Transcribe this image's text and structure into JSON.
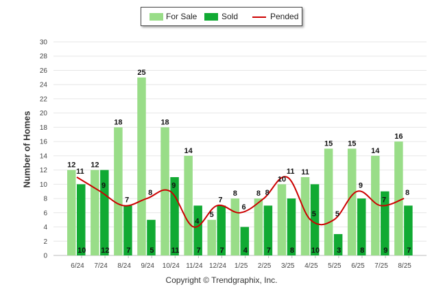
{
  "chart_data": {
    "type": "bar",
    "categories": [
      "6/24",
      "7/24",
      "8/24",
      "9/24",
      "10/24",
      "11/24",
      "12/24",
      "1/25",
      "2/25",
      "3/25",
      "4/25",
      "5/25",
      "6/25",
      "7/25",
      "8/25"
    ],
    "series": [
      {
        "name": "For Sale",
        "type": "bar",
        "color": "#99dd88",
        "values": [
          12,
          12,
          18,
          25,
          18,
          14,
          5,
          8,
          8,
          10,
          11,
          15,
          15,
          14,
          16
        ]
      },
      {
        "name": "Sold",
        "type": "bar",
        "color": "#11aa33",
        "values": [
          10,
          12,
          7,
          5,
          11,
          7,
          7,
          4,
          7,
          8,
          10,
          3,
          8,
          9,
          7
        ]
      },
      {
        "name": "Pended",
        "type": "line",
        "color": "#cc0000",
        "values": [
          11,
          9,
          7,
          8,
          9,
          4,
          7,
          6,
          8,
          11,
          5,
          5,
          9,
          7,
          8
        ]
      }
    ],
    "ylabel": "Number of Homes",
    "ylim": [
      0,
      30
    ],
    "yticks": [
      "0",
      "2",
      "4",
      "6",
      "8",
      "10",
      "12",
      "14",
      "16",
      "18",
      "20",
      "22",
      "24",
      "26",
      "28",
      "30"
    ],
    "grid": true,
    "legend_position": "top-center"
  },
  "legend": {
    "for_sale": "For Sale",
    "sold": "Sold",
    "pended": "Pended"
  },
  "footer": {
    "copyright": "Copyright © Trendgraphix, Inc."
  }
}
